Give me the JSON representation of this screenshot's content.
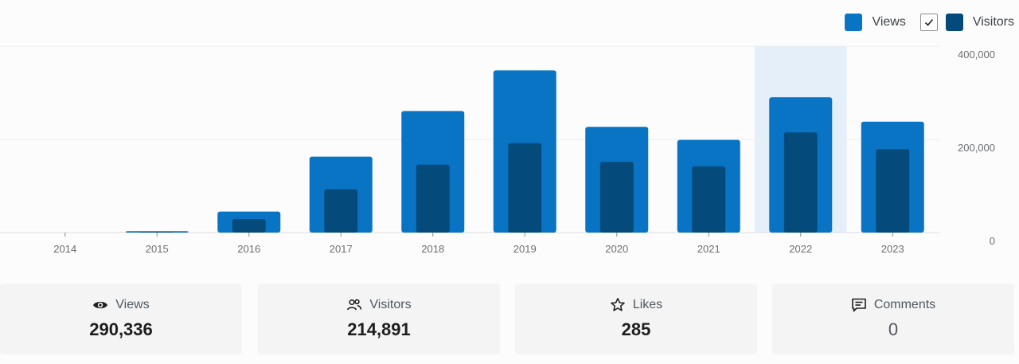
{
  "legend": {
    "views_label": "Views",
    "visitors_label": "Visitors",
    "visitors_checked": true
  },
  "colors": {
    "views": "#0a74c4",
    "visitors": "#044b7c",
    "highlight": "#e4eff9",
    "active_border": "#1f6fb3"
  },
  "chart_data": {
    "type": "bar",
    "categories": [
      "2014",
      "2015",
      "2016",
      "2017",
      "2018",
      "2019",
      "2020",
      "2021",
      "2022",
      "2023"
    ],
    "series": [
      {
        "name": "Views",
        "values": [
          0,
          3000,
          45000,
          163000,
          261000,
          348000,
          227000,
          199000,
          290336,
          238000
        ]
      },
      {
        "name": "Visitors",
        "values": [
          0,
          1500,
          29000,
          93000,
          146000,
          192000,
          152000,
          142000,
          214891,
          179000
        ]
      }
    ],
    "ylim": [
      0,
      400000
    ],
    "yticks": [
      "0",
      "200,000",
      "400,000"
    ],
    "highlighted_category": "2022",
    "grid": true,
    "legend_position": "top-right"
  },
  "cards": [
    {
      "label": "Views",
      "value": "290,336",
      "icon": "eye-icon",
      "active": true
    },
    {
      "label": "Visitors",
      "value": "214,891",
      "icon": "people-icon",
      "active": false
    },
    {
      "label": "Likes",
      "value": "285",
      "icon": "star-icon",
      "active": false
    },
    {
      "label": "Comments",
      "value": "0",
      "icon": "comment-icon",
      "active": false
    }
  ]
}
